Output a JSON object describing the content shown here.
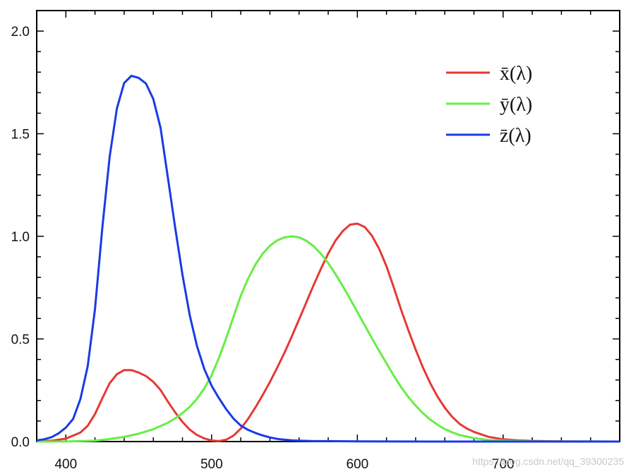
{
  "chart_data": {
    "type": "line",
    "title": "",
    "xlabel": "",
    "ylabel": "",
    "xlim": [
      380,
      780
    ],
    "ylim": [
      0,
      2.1
    ],
    "x_ticks": [
      400,
      500,
      600,
      700
    ],
    "y_ticks": [
      "0.0",
      "0.5",
      "1.0",
      "1.5",
      "2.0"
    ],
    "grid": false,
    "legend_position": "top-right",
    "series": [
      {
        "name": "x̄(λ)",
        "color": "#e53935",
        "points": [
          [
            380,
            0.001
          ],
          [
            390,
            0.004
          ],
          [
            400,
            0.014
          ],
          [
            410,
            0.044
          ],
          [
            415,
            0.077
          ],
          [
            420,
            0.134
          ],
          [
            425,
            0.21
          ],
          [
            430,
            0.284
          ],
          [
            435,
            0.328
          ],
          [
            440,
            0.348
          ],
          [
            445,
            0.348
          ],
          [
            450,
            0.336
          ],
          [
            455,
            0.319
          ],
          [
            460,
            0.291
          ],
          [
            465,
            0.251
          ],
          [
            470,
            0.195
          ],
          [
            475,
            0.142
          ],
          [
            480,
            0.096
          ],
          [
            485,
            0.058
          ],
          [
            490,
            0.032
          ],
          [
            495,
            0.015
          ],
          [
            500,
            0.005
          ],
          [
            505,
            0.002
          ],
          [
            510,
            0.009
          ],
          [
            515,
            0.029
          ],
          [
            520,
            0.063
          ],
          [
            525,
            0.11
          ],
          [
            530,
            0.166
          ],
          [
            535,
            0.226
          ],
          [
            540,
            0.29
          ],
          [
            545,
            0.36
          ],
          [
            550,
            0.433
          ],
          [
            555,
            0.512
          ],
          [
            560,
            0.595
          ],
          [
            565,
            0.678
          ],
          [
            570,
            0.762
          ],
          [
            575,
            0.842
          ],
          [
            580,
            0.916
          ],
          [
            585,
            0.979
          ],
          [
            590,
            1.026
          ],
          [
            595,
            1.057
          ],
          [
            600,
            1.062
          ],
          [
            605,
            1.046
          ],
          [
            610,
            1.003
          ],
          [
            615,
            0.938
          ],
          [
            620,
            0.854
          ],
          [
            625,
            0.751
          ],
          [
            630,
            0.642
          ],
          [
            635,
            0.542
          ],
          [
            640,
            0.448
          ],
          [
            645,
            0.361
          ],
          [
            650,
            0.284
          ],
          [
            655,
            0.219
          ],
          [
            660,
            0.165
          ],
          [
            665,
            0.121
          ],
          [
            670,
            0.087
          ],
          [
            675,
            0.064
          ],
          [
            680,
            0.047
          ],
          [
            690,
            0.023
          ],
          [
            700,
            0.011
          ],
          [
            710,
            0.006
          ],
          [
            720,
            0.003
          ],
          [
            740,
            0.001
          ],
          [
            780,
            0.0
          ]
        ]
      },
      {
        "name": "ȳ(λ)",
        "color": "#66ee44",
        "points": [
          [
            380,
            0.0
          ],
          [
            400,
            0.0004
          ],
          [
            420,
            0.004
          ],
          [
            430,
            0.012
          ],
          [
            440,
            0.023
          ],
          [
            450,
            0.038
          ],
          [
            460,
            0.06
          ],
          [
            470,
            0.091
          ],
          [
            475,
            0.113
          ],
          [
            480,
            0.139
          ],
          [
            485,
            0.169
          ],
          [
            490,
            0.208
          ],
          [
            495,
            0.259
          ],
          [
            500,
            0.323
          ],
          [
            505,
            0.407
          ],
          [
            510,
            0.503
          ],
          [
            515,
            0.608
          ],
          [
            520,
            0.71
          ],
          [
            525,
            0.793
          ],
          [
            530,
            0.862
          ],
          [
            535,
            0.915
          ],
          [
            540,
            0.954
          ],
          [
            545,
            0.98
          ],
          [
            550,
            0.995
          ],
          [
            555,
            1.0
          ],
          [
            560,
            0.995
          ],
          [
            565,
            0.979
          ],
          [
            570,
            0.952
          ],
          [
            575,
            0.915
          ],
          [
            580,
            0.87
          ],
          [
            585,
            0.816
          ],
          [
            590,
            0.757
          ],
          [
            595,
            0.695
          ],
          [
            600,
            0.631
          ],
          [
            605,
            0.567
          ],
          [
            610,
            0.503
          ],
          [
            615,
            0.441
          ],
          [
            620,
            0.381
          ],
          [
            625,
            0.321
          ],
          [
            630,
            0.265
          ],
          [
            635,
            0.217
          ],
          [
            640,
            0.175
          ],
          [
            645,
            0.138
          ],
          [
            650,
            0.107
          ],
          [
            655,
            0.082
          ],
          [
            660,
            0.061
          ],
          [
            665,
            0.045
          ],
          [
            670,
            0.032
          ],
          [
            680,
            0.017
          ],
          [
            690,
            0.008
          ],
          [
            700,
            0.004
          ],
          [
            720,
            0.001
          ],
          [
            780,
            0.0
          ]
        ]
      },
      {
        "name": "z̄(λ)",
        "color": "#1a3ae6",
        "points": [
          [
            380,
            0.006
          ],
          [
            385,
            0.011
          ],
          [
            390,
            0.021
          ],
          [
            395,
            0.04
          ],
          [
            400,
            0.068
          ],
          [
            405,
            0.11
          ],
          [
            410,
            0.207
          ],
          [
            415,
            0.368
          ],
          [
            420,
            0.646
          ],
          [
            425,
            1.039
          ],
          [
            430,
            1.386
          ],
          [
            435,
            1.623
          ],
          [
            440,
            1.747
          ],
          [
            445,
            1.782
          ],
          [
            450,
            1.772
          ],
          [
            455,
            1.744
          ],
          [
            460,
            1.669
          ],
          [
            465,
            1.528
          ],
          [
            470,
            1.287
          ],
          [
            475,
            1.042
          ],
          [
            480,
            0.813
          ],
          [
            485,
            0.616
          ],
          [
            490,
            0.465
          ],
          [
            495,
            0.353
          ],
          [
            500,
            0.272
          ],
          [
            505,
            0.212
          ],
          [
            510,
            0.158
          ],
          [
            515,
            0.112
          ],
          [
            520,
            0.078
          ],
          [
            525,
            0.057
          ],
          [
            530,
            0.042
          ],
          [
            535,
            0.03
          ],
          [
            540,
            0.02
          ],
          [
            545,
            0.013
          ],
          [
            550,
            0.009
          ],
          [
            555,
            0.006
          ],
          [
            560,
            0.004
          ],
          [
            570,
            0.002
          ],
          [
            580,
            0.002
          ],
          [
            600,
            0.001
          ],
          [
            650,
            0.0
          ],
          [
            780,
            0.0
          ]
        ]
      }
    ]
  },
  "watermark": "https://blog.csdn.net/qq_39300235"
}
